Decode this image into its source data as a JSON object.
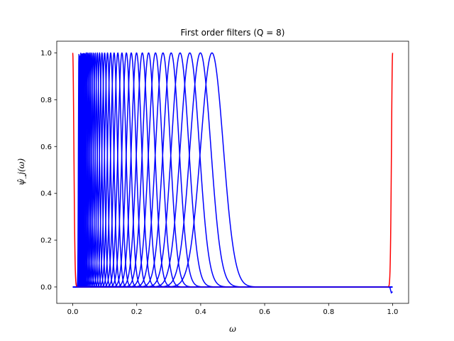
{
  "chart_data": {
    "type": "line",
    "title": "First order filters (Q = 8)",
    "xlabel": "ω",
    "ylabel": "ψ̂_j(ω)",
    "xlim": [
      -0.05,
      1.05
    ],
    "ylim": [
      -0.07,
      1.05
    ],
    "x_ticks": [
      "0.0",
      "0.2",
      "0.4",
      "0.6",
      "0.8",
      "1.0"
    ],
    "y_ticks": [
      "0.0",
      "0.2",
      "0.4",
      "0.6",
      "0.8",
      "1.0"
    ],
    "grid": false,
    "colors": {
      "filters": "#0000ff",
      "boundary": "#ff0000"
    },
    "filter_centers": [
      0.4353,
      0.3991,
      0.366,
      0.3356,
      0.3077,
      0.2821,
      0.2587,
      0.2372,
      0.2175,
      0.1994,
      0.1829,
      0.1677,
      0.1538,
      0.141,
      0.1293,
      0.1185,
      0.1087,
      0.0997,
      0.0914,
      0.0838,
      0.0768,
      0.0704,
      0.0646,
      0.0592,
      0.0543,
      0.0498,
      0.0457,
      0.0419,
      0.0384,
      0.0352,
      0.0323,
      0.0296,
      0.0271,
      0.0249,
      0.0228,
      0.0209,
      0.0192
    ],
    "filter_peak": 1.0,
    "boundary_peak_x": [
      0.0,
      1.0
    ],
    "boundary_dip": -0.025
  }
}
